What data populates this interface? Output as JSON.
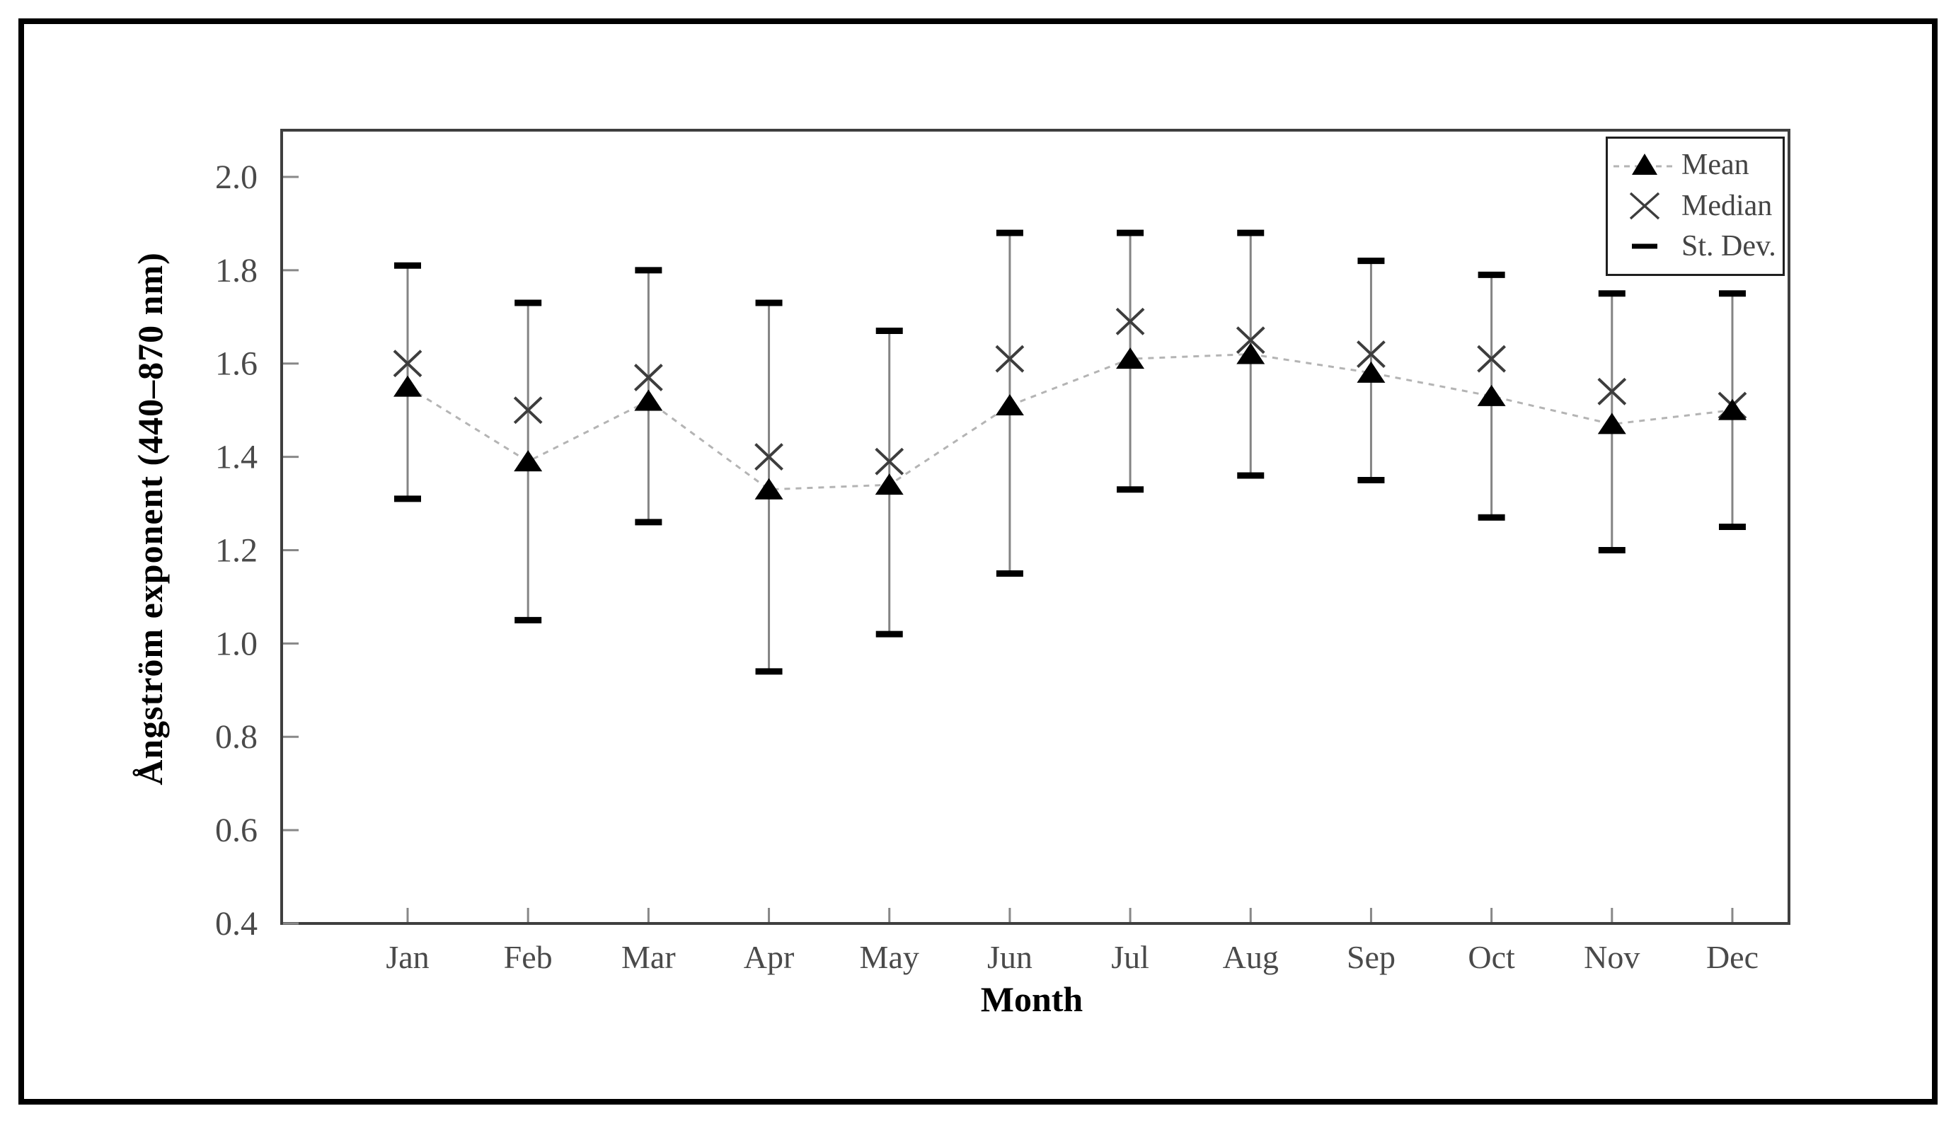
{
  "figure": {
    "background_color": "#ffffff",
    "border_color": "#000000"
  },
  "chart_data": {
    "type": "line",
    "title": "",
    "xlabel": "Month",
    "ylabel": "Ångström exponent (440–870 nm)",
    "categories": [
      "Jan",
      "Feb",
      "Mar",
      "Apr",
      "May",
      "Jun",
      "Jul",
      "Aug",
      "Sep",
      "Oct",
      "Nov",
      "Dec"
    ],
    "series": [
      {
        "name": "Mean",
        "marker": "triangle",
        "line_style": "dashed",
        "values": [
          1.55,
          1.39,
          1.52,
          1.33,
          1.34,
          1.51,
          1.61,
          1.62,
          1.58,
          1.53,
          1.47,
          1.5
        ]
      },
      {
        "name": "Median",
        "marker": "x",
        "line_style": "none",
        "values": [
          1.6,
          1.5,
          1.57,
          1.4,
          1.39,
          1.61,
          1.69,
          1.65,
          1.62,
          1.61,
          1.54,
          1.51
        ]
      }
    ],
    "error_bars": {
      "name": "St. Dev.",
      "centered_on": "Mean",
      "std": [
        0.25,
        0.34,
        0.27,
        0.395,
        0.325,
        0.365,
        0.275,
        0.26,
        0.235,
        0.26,
        0.275,
        0.25
      ],
      "whisker_top": [
        1.81,
        1.73,
        1.8,
        1.73,
        1.67,
        1.88,
        1.88,
        1.88,
        1.82,
        1.79,
        1.75,
        1.75
      ],
      "whisker_bottom": [
        1.31,
        1.05,
        1.26,
        0.94,
        1.02,
        1.15,
        1.33,
        1.36,
        1.35,
        1.27,
        1.2,
        1.25
      ]
    },
    "ylim": [
      0.4,
      2.1
    ],
    "yticks": [
      0.4,
      0.6,
      0.8,
      1.0,
      1.2,
      1.4,
      1.6,
      1.8,
      2.0
    ],
    "grid": false,
    "legend": {
      "position": "top-right",
      "entries": [
        "Mean",
        "Median",
        "St. Dev."
      ]
    },
    "colors": {
      "mean_marker": "#000000",
      "median_marker": "#3d3d3d",
      "mean_dashed_line": "#b4b4b4",
      "error_bar_line": "#848484",
      "error_bar_cap": "#000000",
      "axis_line": "#3f3f3f",
      "tick_mark": "#888888",
      "tick_label": "#4a4a4a",
      "axis_title": "#000000",
      "legend_text": "#444444"
    }
  }
}
